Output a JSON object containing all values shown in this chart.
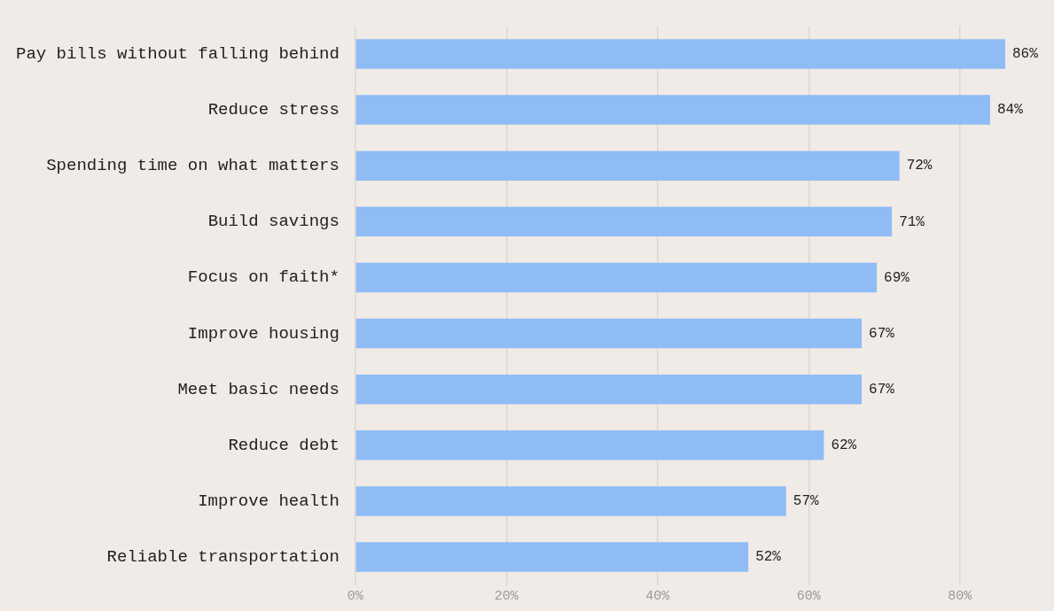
{
  "chart_data": {
    "type": "bar",
    "orientation": "horizontal",
    "categories": [
      "Pay bills without falling behind",
      "Reduce stress",
      "Spending time on what matters",
      "Build savings",
      "Focus on faith*",
      "Improve housing",
      "Meet basic needs",
      "Reduce debt",
      "Improve health",
      "Reliable transportation"
    ],
    "values": [
      86,
      84,
      72,
      71,
      69,
      67,
      67,
      62,
      57,
      52
    ],
    "value_labels": [
      "86%",
      "84%",
      "72%",
      "71%",
      "69%",
      "67%",
      "67%",
      "62%",
      "57%",
      "52%"
    ],
    "color": "#8fbcf5",
    "xlim": [
      0,
      86
    ],
    "xticks": [
      {
        "value": 0,
        "label": "0%"
      },
      {
        "value": 20,
        "label": "20%"
      },
      {
        "value": 40,
        "label": "40%"
      },
      {
        "value": 60,
        "label": "60%"
      },
      {
        "value": 80,
        "label": "80%"
      }
    ],
    "grid": "x",
    "legend": false
  }
}
